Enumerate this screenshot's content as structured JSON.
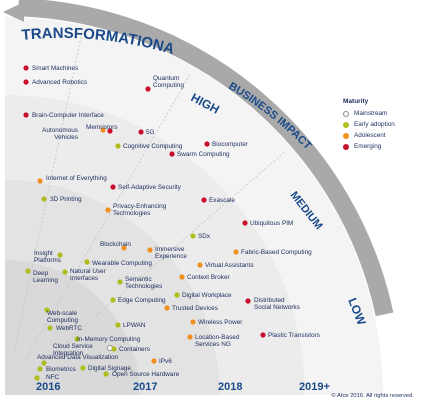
{
  "bands": {
    "transformational": "TRANSFORMATIONAL",
    "high": "HIGH",
    "business_impact": "BUSINESS IMPACT",
    "medium": "MEDIUM",
    "low": "LOW"
  },
  "years": [
    "2016",
    "2017",
    "2018",
    "2019+"
  ],
  "legend": {
    "title": "Maturity",
    "items": [
      {
        "label": "Mainstream",
        "color": "#ffffff"
      },
      {
        "label": "Early adoption",
        "color": "#aebe1e"
      },
      {
        "label": "Adolescent",
        "color": "#f0901e"
      },
      {
        "label": "Emerging",
        "color": "#c8102e"
      }
    ]
  },
  "copyright": "© Atos 2016. All rights reserved.",
  "technologies": [
    {
      "lines": [
        "Smart Machines"
      ],
      "maturity": "Emerging"
    },
    {
      "lines": [
        "Advanced Robotics"
      ],
      "maturity": "Emerging"
    },
    {
      "lines": [
        "Quantum",
        "Computing"
      ],
      "maturity": "Emerging"
    },
    {
      "lines": [
        "Brain-Computer Interface"
      ],
      "maturity": "Emerging"
    },
    {
      "lines": [
        "Autonomous",
        "Vehicles"
      ],
      "maturity": "Adolescent"
    },
    {
      "lines": [
        "Memristors"
      ],
      "maturity": "Emerging"
    },
    {
      "lines": [
        "5G"
      ],
      "maturity": "Emerging"
    },
    {
      "lines": [
        "Cognitive Computing"
      ],
      "maturity": "Early adoption"
    },
    {
      "lines": [
        "Biocomputer"
      ],
      "maturity": "Emerging"
    },
    {
      "lines": [
        "Swarm Computing"
      ],
      "maturity": "Emerging"
    },
    {
      "lines": [
        "Internet of Everything"
      ],
      "maturity": "Adolescent"
    },
    {
      "lines": [
        "Self-Adaptive Security"
      ],
      "maturity": "Emerging"
    },
    {
      "lines": [
        "3D Printing"
      ],
      "maturity": "Early adoption"
    },
    {
      "lines": [
        "Privacy-Enhancing",
        "Technologies"
      ],
      "maturity": "Adolescent"
    },
    {
      "lines": [
        "Exascale"
      ],
      "maturity": "Emerging"
    },
    {
      "lines": [
        "Ubiquitous PIM"
      ],
      "maturity": "Emerging"
    },
    {
      "lines": [
        "SDx"
      ],
      "maturity": "Early adoption"
    },
    {
      "lines": [
        "Blockchain"
      ],
      "maturity": "Adolescent"
    },
    {
      "lines": [
        "Immersive",
        "Experience"
      ],
      "maturity": "Adolescent"
    },
    {
      "lines": [
        "Fabric-Based Computing"
      ],
      "maturity": "Adolescent"
    },
    {
      "lines": [
        "Insight",
        "Platforms"
      ],
      "maturity": "Early adoption"
    },
    {
      "lines": [
        "Wearable Computing"
      ],
      "maturity": "Early adoption"
    },
    {
      "lines": [
        "Virtual Assistants"
      ],
      "maturity": "Adolescent"
    },
    {
      "lines": [
        "Deep",
        "Learning"
      ],
      "maturity": "Early adoption"
    },
    {
      "lines": [
        "Natural User",
        "Interfaces"
      ],
      "maturity": "Early adoption"
    },
    {
      "lines": [
        "Semantic",
        "Technologies"
      ],
      "maturity": "Early adoption"
    },
    {
      "lines": [
        "Context Broker"
      ],
      "maturity": "Adolescent"
    },
    {
      "lines": [
        "Digital Workplace"
      ],
      "maturity": "Early adoption"
    },
    {
      "lines": [
        "Edge Computing"
      ],
      "maturity": "Early adoption"
    },
    {
      "lines": [
        "Distributed",
        "Social Networks"
      ],
      "maturity": "Emerging"
    },
    {
      "lines": [
        "Web-scale",
        "Computing"
      ],
      "maturity": "Early adoption"
    },
    {
      "lines": [
        "Trusted Devices"
      ],
      "maturity": "Adolescent"
    },
    {
      "lines": [
        "Wireless Power"
      ],
      "maturity": "Adolescent"
    },
    {
      "lines": [
        "WebRTC"
      ],
      "maturity": "Early adoption"
    },
    {
      "lines": [
        "LPWAN"
      ],
      "maturity": "Early adoption"
    },
    {
      "lines": [
        "Plastic Transistors"
      ],
      "maturity": "Emerging"
    },
    {
      "lines": [
        "In-Memory Computing"
      ],
      "maturity": "Early adoption"
    },
    {
      "lines": [
        "Location-Based",
        "Services NG"
      ],
      "maturity": "Adolescent"
    },
    {
      "lines": [
        "Cloud Service",
        "Integration"
      ],
      "maturity": "Mainstream"
    },
    {
      "lines": [
        "Containers"
      ],
      "maturity": "Early adoption"
    },
    {
      "lines": [
        "Advanced Data Visualization"
      ],
      "maturity": "Early adoption"
    },
    {
      "lines": [
        "Biometrics"
      ],
      "maturity": "Early adoption"
    },
    {
      "lines": [
        "Digital Signage"
      ],
      "maturity": "Early adoption"
    },
    {
      "lines": [
        "IPv6"
      ],
      "maturity": "Adolescent"
    },
    {
      "lines": [
        "NFC"
      ],
      "maturity": "Early adoption"
    },
    {
      "lines": [
        "Open Source Hardware"
      ],
      "maturity": "Early adoption"
    }
  ]
}
